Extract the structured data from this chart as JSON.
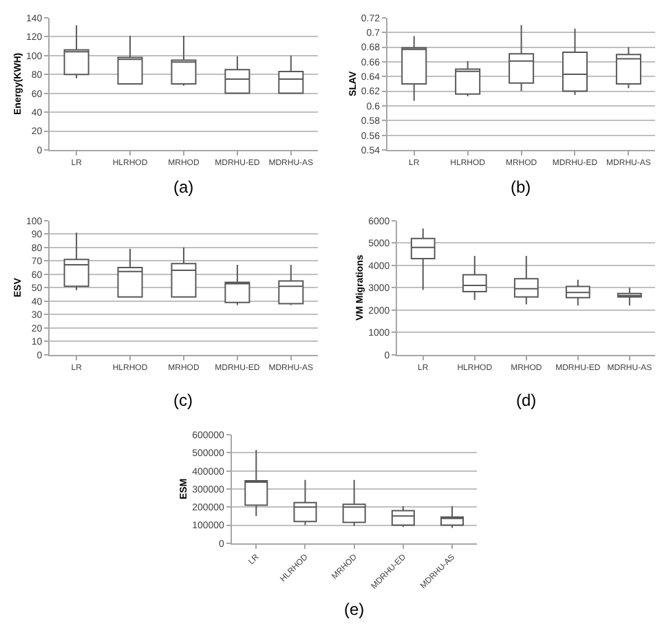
{
  "chart_data": [
    {
      "type": "box",
      "ylabel": "Energy(KWH)",
      "categories": [
        "LR",
        "HLRHOD",
        "MRHOD",
        "MDRHU-ED",
        "MDRHU-AS"
      ],
      "color": "#595959",
      "ylim": [
        0,
        140
      ],
      "yticks": [
        0,
        20,
        40,
        60,
        80,
        100,
        120,
        140
      ],
      "grid": "y",
      "annotations": [
        "(a)"
      ],
      "boxes": [
        {
          "low": 76,
          "q1": 80,
          "median": 104,
          "q3": 106,
          "high": 132
        },
        {
          "low": 70,
          "q1": 70,
          "median": 96,
          "q3": 98,
          "high": 121
        },
        {
          "low": 68,
          "q1": 70,
          "median": 93,
          "q3": 95,
          "high": 121
        },
        {
          "low": 60,
          "q1": 60,
          "median": 75,
          "q3": 85,
          "high": 99
        },
        {
          "low": 60,
          "q1": 60,
          "median": 75,
          "q3": 83,
          "high": 100
        }
      ]
    },
    {
      "type": "box",
      "ylabel": "SLAV",
      "categories": [
        "LR",
        "HLRHOD",
        "MRHOD",
        "MDRHU-ED",
        "MDRHU-AS"
      ],
      "color": "#595959",
      "ylim": [
        0.54,
        0.72
      ],
      "yticks": [
        0.54,
        0.56,
        0.58,
        0.6,
        0.62,
        0.64,
        0.66,
        0.68,
        0.7,
        0.72
      ],
      "grid": "y",
      "annotations": [
        "(b)"
      ],
      "boxes": [
        {
          "low": 0.607,
          "q1": 0.63,
          "median": 0.677,
          "q3": 0.679,
          "high": 0.695
        },
        {
          "low": 0.613,
          "q1": 0.616,
          "median": 0.647,
          "q3": 0.65,
          "high": 0.661
        },
        {
          "low": 0.62,
          "q1": 0.631,
          "median": 0.661,
          "q3": 0.671,
          "high": 0.71
        },
        {
          "low": 0.615,
          "q1": 0.62,
          "median": 0.643,
          "q3": 0.673,
          "high": 0.705
        },
        {
          "low": 0.624,
          "q1": 0.63,
          "median": 0.664,
          "q3": 0.67,
          "high": 0.68
        }
      ]
    },
    {
      "type": "box",
      "ylabel": "ESV",
      "categories": [
        "LR",
        "HLRHOD",
        "MRHOD",
        "MDRHU-ED",
        "MDRHU-AS"
      ],
      "color": "#595959",
      "ylim": [
        0,
        100
      ],
      "yticks": [
        0,
        10,
        20,
        30,
        40,
        50,
        60,
        70,
        80,
        90,
        100
      ],
      "grid": "y",
      "annotations": [
        "(c)"
      ],
      "boxes": [
        {
          "low": 48,
          "q1": 51,
          "median": 67,
          "q3": 71,
          "high": 91
        },
        {
          "low": 43,
          "q1": 43,
          "median": 62,
          "q3": 65,
          "high": 79
        },
        {
          "low": 43,
          "q1": 43,
          "median": 63,
          "q3": 68,
          "high": 80
        },
        {
          "low": 37,
          "q1": 39,
          "median": 53,
          "q3": 54,
          "high": 67
        },
        {
          "low": 37,
          "q1": 38,
          "median": 51,
          "q3": 55,
          "high": 67
        }
      ]
    },
    {
      "type": "box",
      "ylabel": "VM Migrations",
      "categories": [
        "LR",
        "HLRHOD",
        "MRHOD",
        "MDRHU-ED",
        "MDRHU-AS"
      ],
      "color": "#595959",
      "ylim": [
        0,
        6000
      ],
      "yticks": [
        0,
        1000,
        2000,
        3000,
        4000,
        5000,
        6000
      ],
      "grid": "y",
      "annotations": [
        "(d)"
      ],
      "boxes": [
        {
          "low": 2900,
          "q1": 4300,
          "median": 4800,
          "q3": 5200,
          "high": 5650
        },
        {
          "low": 2450,
          "q1": 2820,
          "median": 3100,
          "q3": 3580,
          "high": 4420
        },
        {
          "low": 2250,
          "q1": 2580,
          "median": 2950,
          "q3": 3400,
          "high": 4420
        },
        {
          "low": 2200,
          "q1": 2550,
          "median": 2780,
          "q3": 3050,
          "high": 3350
        },
        {
          "low": 2200,
          "q1": 2580,
          "median": 2640,
          "q3": 2740,
          "high": 3000
        }
      ]
    },
    {
      "type": "box",
      "ylabel": "ESM",
      "categories": [
        "LR",
        "HLRHOD",
        "MRHOD",
        "MDRHU-ED",
        "MDRHU-AS"
      ],
      "color": "#595959",
      "ylim": [
        0,
        600000
      ],
      "yticks": [
        0,
        100000,
        200000,
        300000,
        400000,
        500000,
        600000
      ],
      "grid": "y",
      "annotations": [
        "(e)"
      ],
      "boxes": [
        {
          "low": 150000,
          "q1": 210000,
          "median": 340000,
          "q3": 345000,
          "high": 515000
        },
        {
          "low": 100000,
          "q1": 120000,
          "median": 200000,
          "q3": 225000,
          "high": 350000
        },
        {
          "low": 95000,
          "q1": 115000,
          "median": 200000,
          "q3": 215000,
          "high": 350000
        },
        {
          "low": 90000,
          "q1": 100000,
          "median": 150000,
          "q3": 180000,
          "high": 205000
        },
        {
          "low": 85000,
          "q1": 100000,
          "median": 140000,
          "q3": 145000,
          "high": 205000
        }
      ]
    }
  ]
}
